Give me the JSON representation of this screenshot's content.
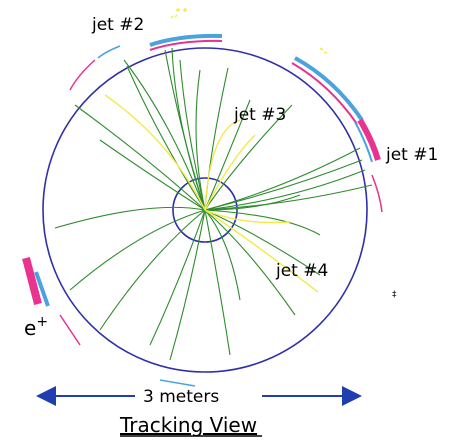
{
  "labels": {
    "jet1": "jet #1",
    "jet2": "jet #2",
    "jet3": "jet #3",
    "jet4": "jet #4",
    "positron_base": "e",
    "positron_sup": "+",
    "scale": "3 meters",
    "title": "Tracking View"
  },
  "colors": {
    "detector_circle": "#2f2fa8",
    "tracks": "#2e8b2e",
    "soft_tracks": "#f2ea4a",
    "calorimeter_magenta": "#e8338f",
    "calorimeter_cyan": "#4aa3e0",
    "scale_arrow": "#1f3fb0"
  }
}
